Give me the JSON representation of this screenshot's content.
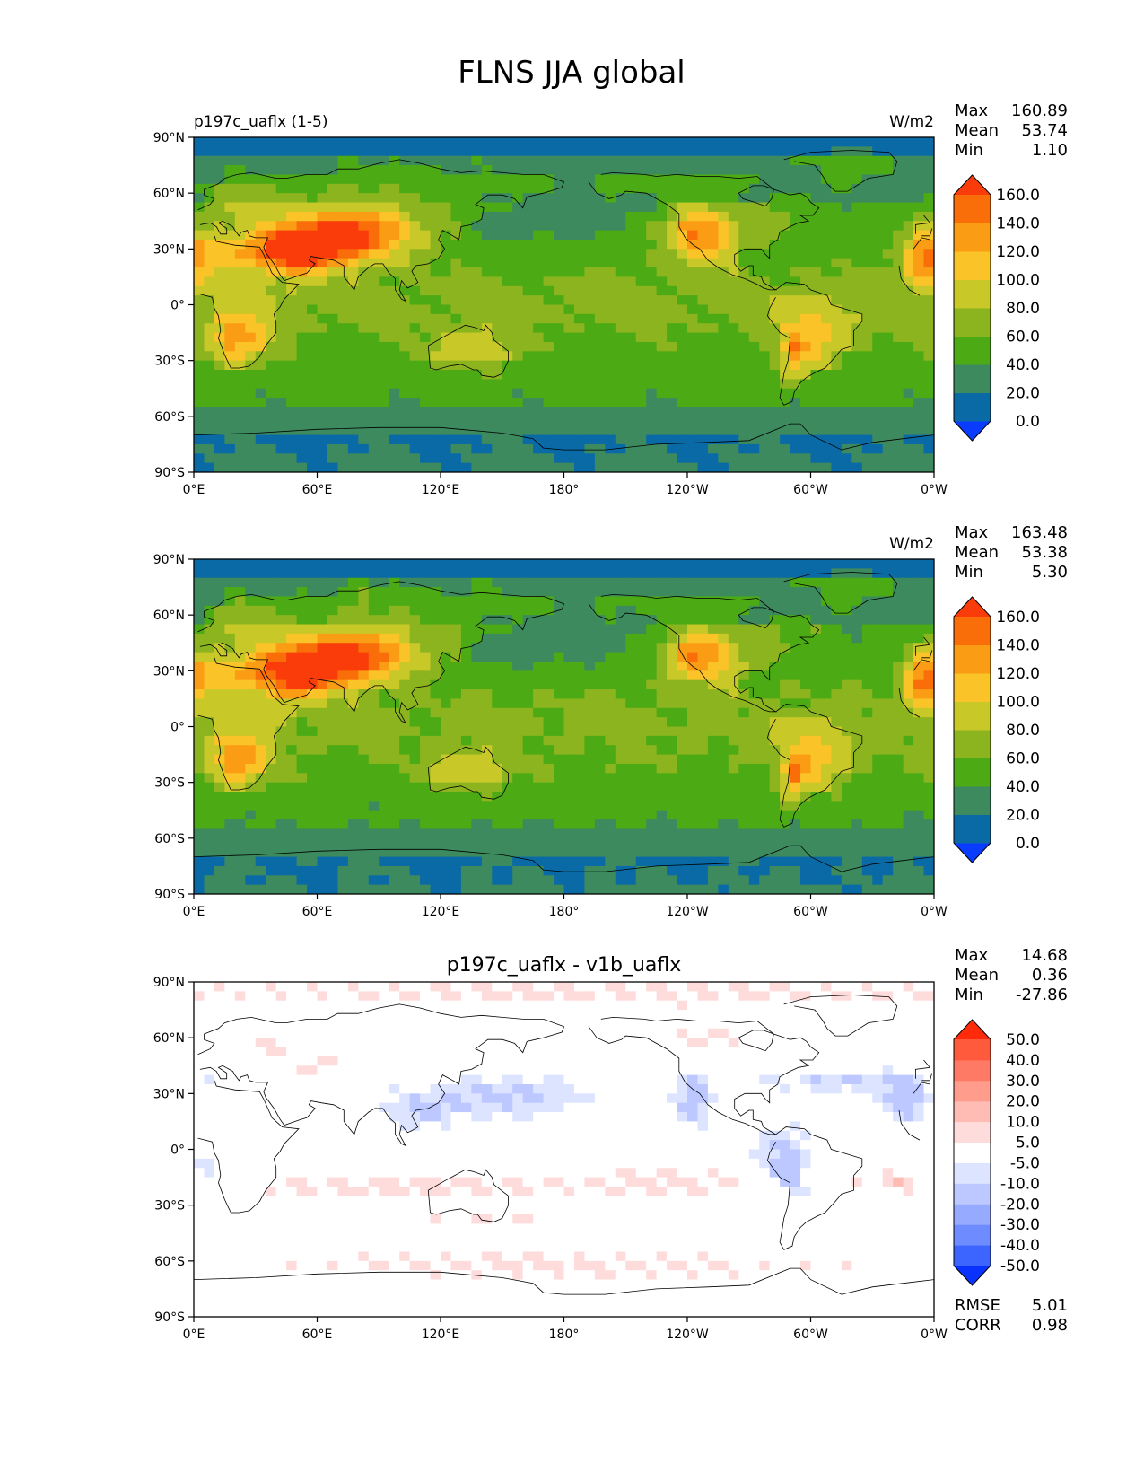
{
  "title": "FLNS JJA global",
  "y_ticks": [
    "90°N",
    "60°N",
    "30°N",
    "0°",
    "30°S",
    "60°S",
    "90°S"
  ],
  "x_ticks": [
    "0°E",
    "60°E",
    "120°E",
    "180°",
    "120°W",
    "60°W",
    "0°W"
  ],
  "panels": [
    {
      "id": "test",
      "left_title": "p197c_uaflx (1-5)",
      "center_title": "",
      "units": "W/m2",
      "stats": [
        {
          "label": "Max",
          "value": "160.89"
        },
        {
          "label": "Mean",
          "value": "53.74"
        },
        {
          "label": "Min",
          "value": "1.10"
        }
      ],
      "colorbar": {
        "colors": [
          "#0a3cff",
          "#0a6aa6",
          "#3c8a5e",
          "#4caa14",
          "#8cb41e",
          "#c8c828",
          "#fac428",
          "#fa9c14",
          "#fa6e0a",
          "#fa3c0a"
        ],
        "labels": [
          "0.0",
          "20.0",
          "40.0",
          "60.0",
          "80.0",
          "100.0",
          "120.0",
          "140.0",
          "160.0"
        ]
      },
      "footer": []
    },
    {
      "id": "reference",
      "left_title": "",
      "center_title": "",
      "units": "W/m2",
      "stats": [
        {
          "label": "Max",
          "value": "163.48"
        },
        {
          "label": "Mean",
          "value": "53.38"
        },
        {
          "label": "Min",
          "value": "5.30"
        }
      ],
      "colorbar": {
        "colors": [
          "#0a3cff",
          "#0a6aa6",
          "#3c8a5e",
          "#4caa14",
          "#8cb41e",
          "#c8c828",
          "#fac428",
          "#fa9c14",
          "#fa6e0a",
          "#fa3c0a"
        ],
        "labels": [
          "0.0",
          "20.0",
          "40.0",
          "60.0",
          "80.0",
          "100.0",
          "120.0",
          "140.0",
          "160.0"
        ]
      },
      "footer": []
    },
    {
      "id": "difference",
      "left_title": "",
      "center_title": "p197c_uaflx - v1b_uaflx",
      "units": "",
      "stats": [
        {
          "label": "Max",
          "value": "14.68"
        },
        {
          "label": "Mean",
          "value": "0.36"
        },
        {
          "label": "Min",
          "value": "-27.86"
        }
      ],
      "colorbar": {
        "colors": [
          "#0a32ff",
          "#3c64ff",
          "#6e8cff",
          "#96aaff",
          "#bcc8ff",
          "#dce4ff",
          "#ffffff",
          "#ffdcdc",
          "#ffbcb4",
          "#ff9c8c",
          "#ff7a64",
          "#ff5a3c",
          "#ff2a0a"
        ],
        "labels": [
          "-50.0",
          "-40.0",
          "-30.0",
          "-20.0",
          "-10.0",
          "-5.0",
          "5.0",
          "10.0",
          "20.0",
          "30.0",
          "40.0",
          "50.0"
        ]
      },
      "footer": [
        {
          "label": "RMSE",
          "value": "5.01"
        },
        {
          "label": "CORR",
          "value": "0.98"
        }
      ]
    }
  ]
}
